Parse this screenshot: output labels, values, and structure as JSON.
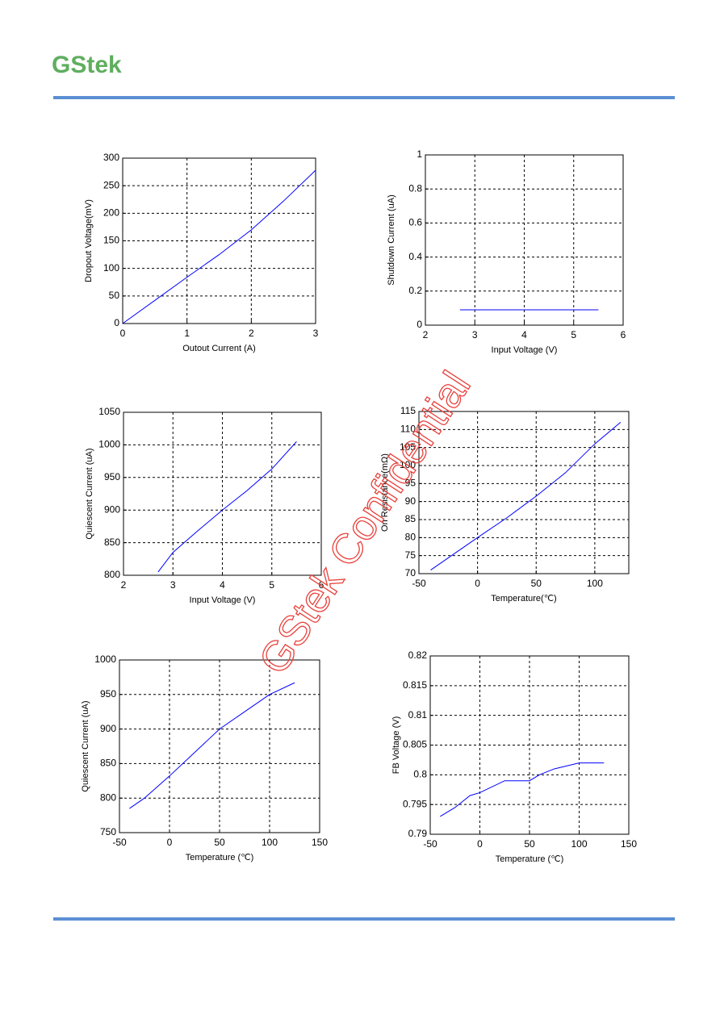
{
  "header": {
    "logo": "GStek"
  },
  "watermark": "GStek Confidential",
  "chart_data": [
    {
      "type": "line",
      "xlabel": "Outout Current (A)",
      "ylabel": "Dropout Voltage(mV)",
      "xlim": [
        0,
        3
      ],
      "xticks": [
        0,
        1,
        2,
        3
      ],
      "ylim": [
        0,
        300
      ],
      "yticks": [
        0,
        50,
        100,
        150,
        200,
        250,
        300
      ],
      "grid": true,
      "x": [
        0,
        0.5,
        1,
        1.5,
        2,
        2.5,
        3
      ],
      "series": [
        {
          "color": "#0000ff",
          "values": [
            0,
            42,
            84,
            125,
            170,
            222,
            278
          ]
        }
      ]
    },
    {
      "type": "line",
      "xlabel": "Input Voltage (V)",
      "ylabel": "Shutdown Current (uA)",
      "xlim": [
        2,
        6
      ],
      "xticks": [
        2,
        3,
        4,
        5,
        6
      ],
      "ylim": [
        0,
        1
      ],
      "yticks": [
        0,
        0.2,
        0.4,
        0.6,
        0.8,
        1
      ],
      "grid": true,
      "x": [
        2.7,
        3,
        4,
        5,
        5.5
      ],
      "series": [
        {
          "color": "#0000ff",
          "values": [
            0.09,
            0.09,
            0.09,
            0.09,
            0.09
          ]
        }
      ]
    },
    {
      "type": "line",
      "xlabel": "Input Voltage (V)",
      "ylabel": "Quiescent Current (uA)",
      "xlim": [
        2,
        6
      ],
      "xticks": [
        2,
        3,
        4,
        5,
        6
      ],
      "ylim": [
        800,
        1050
      ],
      "yticks": [
        800,
        850,
        900,
        950,
        1000,
        1050
      ],
      "grid": true,
      "x": [
        2.7,
        3,
        3.5,
        4,
        4.5,
        5,
        5.5
      ],
      "series": [
        {
          "color": "#0000ff",
          "values": [
            805,
            835,
            868,
            900,
            930,
            963,
            1005
          ]
        }
      ]
    },
    {
      "type": "line",
      "xlabel": "Temperature(℃)",
      "ylabel": "On Resistance(mΩ)",
      "xlim": [
        -50,
        129
      ],
      "xticks": [
        -50,
        0,
        50,
        100
      ],
      "ylim": [
        70,
        115
      ],
      "yticks": [
        70,
        75,
        80,
        85,
        90,
        95,
        100,
        105,
        110,
        115
      ],
      "grid": true,
      "x": [
        -40,
        -20,
        0,
        25,
        50,
        75,
        100,
        122
      ],
      "series": [
        {
          "color": "#0000ff",
          "values": [
            71,
            75.5,
            80,
            85.5,
            91.5,
            98,
            106,
            112
          ]
        }
      ]
    },
    {
      "type": "line",
      "xlabel": "Temperature (℃)",
      "ylabel": "Quiescent Current (uA)",
      "xlim": [
        -50,
        150
      ],
      "xticks": [
        -50,
        0,
        50,
        100,
        150
      ],
      "ylim": [
        750,
        1000
      ],
      "yticks": [
        750,
        800,
        850,
        900,
        950,
        1000
      ],
      "grid": true,
      "x": [
        -40,
        -25,
        0,
        25,
        50,
        75,
        100,
        125
      ],
      "series": [
        {
          "color": "#0000ff",
          "values": [
            785,
            800,
            832,
            866,
            900,
            925,
            950,
            967
          ]
        }
      ]
    },
    {
      "type": "line",
      "xlabel": "Temperature (℃)",
      "ylabel": "FB Voltage (V)",
      "xlim": [
        -50,
        150
      ],
      "xticks": [
        -50,
        0,
        50,
        100,
        150
      ],
      "ylim": [
        0.79,
        0.82
      ],
      "yticks": [
        0.79,
        0.795,
        0.8,
        0.805,
        0.81,
        0.815,
        0.82
      ],
      "grid": true,
      "x": [
        -40,
        -25,
        -10,
        0,
        25,
        50,
        60,
        75,
        100,
        125
      ],
      "series": [
        {
          "color": "#0000ff",
          "values": [
            0.793,
            0.7945,
            0.7965,
            0.797,
            0.799,
            0.799,
            0.8,
            0.801,
            0.802,
            0.802
          ]
        }
      ]
    }
  ]
}
